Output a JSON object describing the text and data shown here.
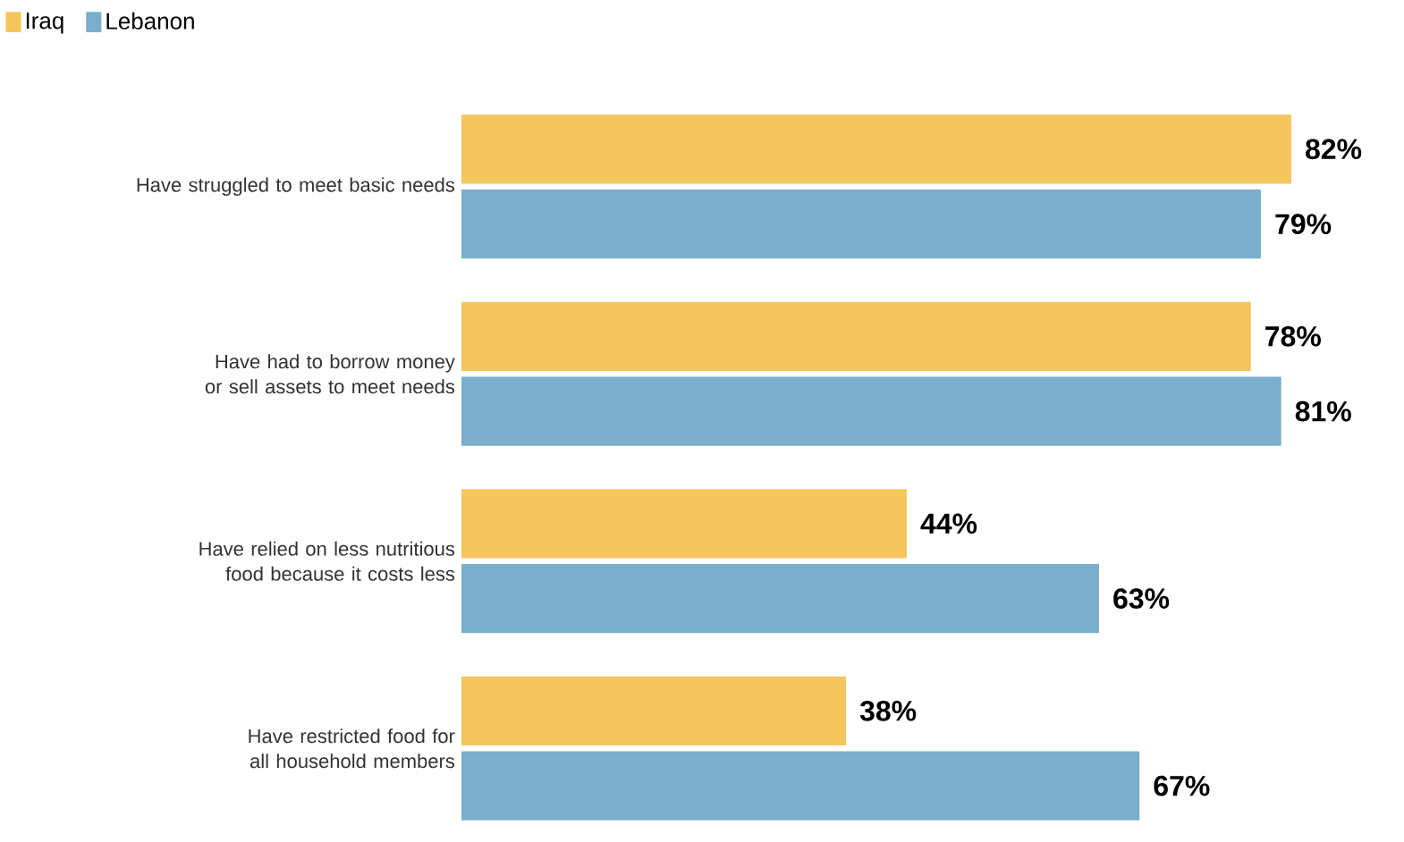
{
  "chart_data": {
    "type": "bar",
    "orientation": "horizontal",
    "categories": [
      "Have struggled to meet basic needs",
      "Have had to borrow money or sell assets to meet needs",
      "Have relied on less nutritious food because it costs less",
      "Have restricted food for all household members"
    ],
    "tick_labels": "y",
    "legend": "top left",
    "series": [
      {
        "name": "Iraq",
        "color": "#f5c55e",
        "values": [
          82,
          78,
          44,
          38
        ],
        "value_labels": [
          "82%",
          "78%",
          "44%",
          "38%"
        ]
      },
      {
        "name": "Lebanon",
        "color": "#7aaecb",
        "values": [
          79,
          81,
          63,
          67
        ],
        "value_labels": [
          "79%",
          "81%",
          "63%",
          "67%"
        ]
      }
    ]
  }
}
